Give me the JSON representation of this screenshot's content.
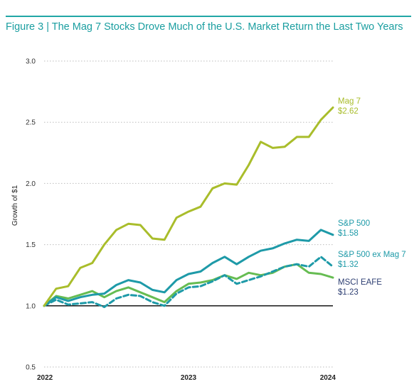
{
  "header": {
    "title": "Figure 3 | The Mag 7 Stocks Drove Much of the U.S. Market Return the Last Two Years"
  },
  "colors": {
    "accent": "#21a7a6",
    "mag7": "#a9bd2b",
    "sp500": "#1e9aa8",
    "sp500_ex": "#1e9aa8",
    "eafe": "#66bc52",
    "eafe_label": "#2e3f73",
    "grid": "#bdbdbd",
    "baseline": "#000000"
  },
  "chart_data": {
    "type": "line",
    "title": "",
    "xlabel": "",
    "ylabel": "Growth of $1",
    "ylim": [
      0.5,
      3.0
    ],
    "yticks": [
      "0.5",
      "1.0",
      "1.5",
      "2.0",
      "2.5",
      "3.0"
    ],
    "ytick_values": [
      0.5,
      1.0,
      1.5,
      2.0,
      2.5,
      3.0
    ],
    "xlim": [
      0,
      24
    ],
    "xticks": [
      "2022",
      "2023",
      "2024"
    ],
    "xtick_values": [
      0,
      12,
      24
    ],
    "grid": "horizontal dotted",
    "baseline": 1.0,
    "x": [
      0,
      1,
      2,
      3,
      4,
      5,
      6,
      7,
      8,
      9,
      10,
      11,
      12,
      13,
      14,
      15,
      16,
      17,
      18,
      19,
      20,
      21,
      22,
      23,
      24
    ],
    "series": [
      {
        "key": "mag7",
        "name": "Mag 7",
        "end_label": "$2.62",
        "dash": false,
        "values": [
          1.0,
          1.14,
          1.16,
          1.31,
          1.35,
          1.5,
          1.62,
          1.67,
          1.66,
          1.55,
          1.54,
          1.72,
          1.77,
          1.81,
          1.96,
          2.0,
          1.99,
          2.15,
          2.34,
          2.29,
          2.3,
          2.38,
          2.38,
          2.52,
          2.62
        ]
      },
      {
        "key": "sp500",
        "name": "S&P 500",
        "end_label": "$1.58",
        "dash": false,
        "values": [
          1.0,
          1.07,
          1.04,
          1.07,
          1.09,
          1.1,
          1.17,
          1.21,
          1.19,
          1.13,
          1.11,
          1.21,
          1.26,
          1.28,
          1.35,
          1.4,
          1.34,
          1.4,
          1.45,
          1.47,
          1.51,
          1.54,
          1.53,
          1.62,
          1.58
        ]
      },
      {
        "key": "sp500_ex",
        "name": "S&P 500 ex Mag 7",
        "end_label": "$1.32",
        "dash": true,
        "values": [
          1.0,
          1.05,
          1.01,
          1.02,
          1.03,
          0.99,
          1.06,
          1.09,
          1.08,
          1.03,
          1.0,
          1.1,
          1.15,
          1.16,
          1.2,
          1.25,
          1.18,
          1.21,
          1.24,
          1.28,
          1.32,
          1.34,
          1.32,
          1.4,
          1.32
        ]
      },
      {
        "key": "eafe",
        "name": "MSCI EAFE",
        "end_label": "$1.23",
        "dash": false,
        "values": [
          1.0,
          1.08,
          1.06,
          1.09,
          1.12,
          1.07,
          1.12,
          1.15,
          1.11,
          1.07,
          1.03,
          1.12,
          1.18,
          1.19,
          1.21,
          1.25,
          1.22,
          1.27,
          1.25,
          1.27,
          1.32,
          1.34,
          1.27,
          1.26,
          1.23
        ]
      }
    ]
  }
}
